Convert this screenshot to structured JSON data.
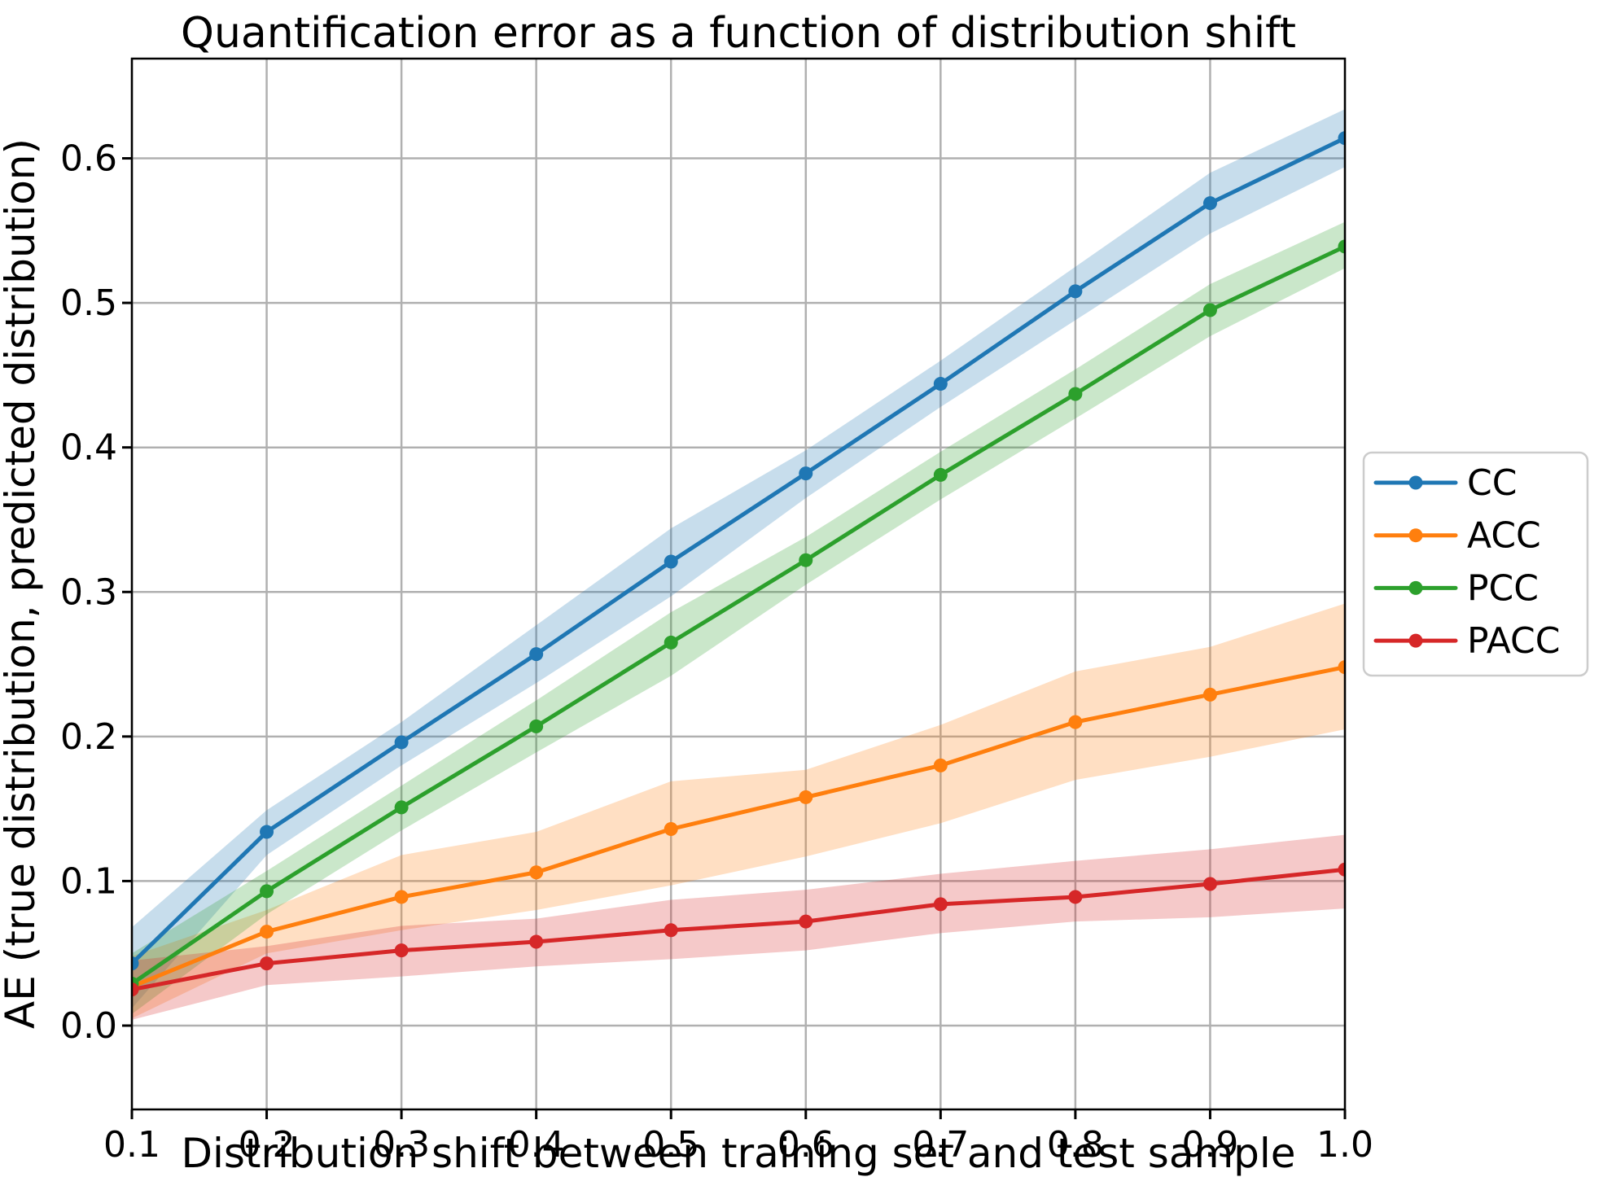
{
  "chart_data": {
    "type": "line",
    "title": "Quantification error as a function of distribution shift",
    "xlabel": "Distribution shift between training set and test sample",
    "ylabel": "AE (true distribution, predicted distribution)",
    "x": [
      0.1,
      0.2,
      0.3,
      0.4,
      0.5,
      0.6,
      0.7,
      0.8,
      0.9,
      1.0
    ],
    "x_tick_labels": [
      "0.1",
      "0.2",
      "0.3",
      "0.4",
      "0.5",
      "0.6",
      "0.7",
      "0.8",
      "0.9",
      "1.0"
    ],
    "y_tick_labels": [
      "0.0",
      "0.1",
      "0.2",
      "0.3",
      "0.4",
      "0.5",
      "0.6"
    ],
    "xlim": [
      0.1,
      1.0
    ],
    "ylim": [
      -0.058,
      0.669
    ],
    "grid": true,
    "grid_color": "#b0b0b0",
    "spine_color": "#000000",
    "legend_position": "outside-center-right",
    "series": [
      {
        "name": "CC",
        "color": "#1f77b4",
        "values": [
          0.043,
          0.134,
          0.196,
          0.257,
          0.321,
          0.382,
          0.444,
          0.508,
          0.569,
          0.614
        ],
        "band_lower": [
          0.012,
          0.118,
          0.18,
          0.237,
          0.297,
          0.365,
          0.428,
          0.488,
          0.548,
          0.594
        ],
        "band_upper": [
          0.068,
          0.149,
          0.21,
          0.277,
          0.344,
          0.398,
          0.46,
          0.525,
          0.59,
          0.634
        ]
      },
      {
        "name": "ACC",
        "color": "#ff7f0e",
        "values": [
          0.027,
          0.065,
          0.089,
          0.106,
          0.136,
          0.158,
          0.18,
          0.21,
          0.229,
          0.248
        ],
        "band_lower": [
          0.005,
          0.05,
          0.066,
          0.08,
          0.097,
          0.117,
          0.14,
          0.17,
          0.186,
          0.205
        ],
        "band_upper": [
          0.048,
          0.08,
          0.118,
          0.134,
          0.169,
          0.177,
          0.208,
          0.245,
          0.262,
          0.292
        ]
      },
      {
        "name": "PCC",
        "color": "#2ca02c",
        "values": [
          0.029,
          0.093,
          0.151,
          0.207,
          0.265,
          0.322,
          0.381,
          0.437,
          0.495,
          0.539
        ],
        "band_lower": [
          0.008,
          0.077,
          0.135,
          0.189,
          0.242,
          0.305,
          0.364,
          0.42,
          0.477,
          0.524
        ],
        "band_upper": [
          0.05,
          0.107,
          0.166,
          0.225,
          0.286,
          0.338,
          0.397,
          0.454,
          0.513,
          0.556
        ]
      },
      {
        "name": "PACC",
        "color": "#d62728",
        "values": [
          0.025,
          0.043,
          0.052,
          0.058,
          0.066,
          0.072,
          0.084,
          0.089,
          0.098,
          0.108
        ],
        "band_lower": [
          0.004,
          0.028,
          0.034,
          0.041,
          0.046,
          0.052,
          0.064,
          0.072,
          0.075,
          0.081
        ],
        "band_upper": [
          0.045,
          0.055,
          0.069,
          0.074,
          0.087,
          0.094,
          0.105,
          0.114,
          0.122,
          0.132
        ]
      }
    ]
  }
}
